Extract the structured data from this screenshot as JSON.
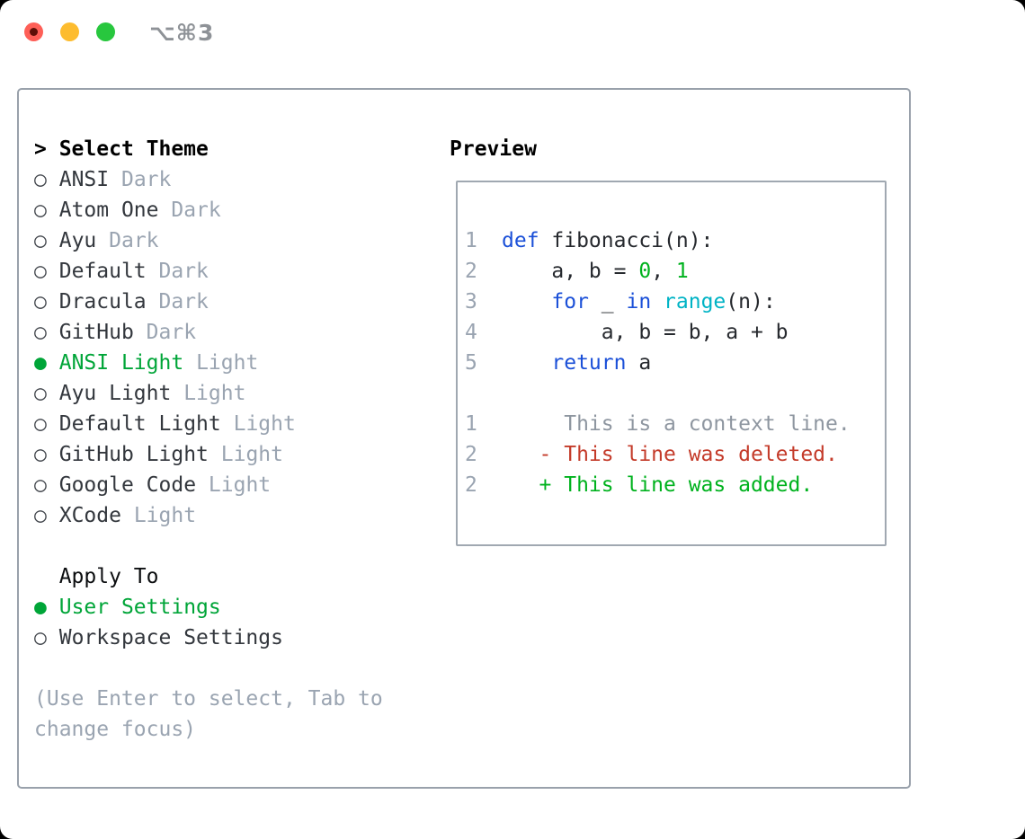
{
  "titlebar": {
    "shortcut_label": "⌥⌘3",
    "buttons": [
      "close",
      "minimize",
      "zoom"
    ]
  },
  "colors": {
    "ui-green": "#00a538",
    "keyword-blue": "#1b50d8",
    "builtin-cyan": "#00b3c5",
    "literal-green": "#00b21e",
    "deleted-red": "#c43b2a",
    "added-green": "#00b21e",
    "muted-gray": "#9aa4b1",
    "text-dark": "#33373d",
    "border-gray": "#99a1ab",
    "traffic-red": "#fe5f57",
    "traffic-yellow": "#fdbc2f",
    "traffic-green": "#28c73e"
  },
  "theme_panel": {
    "title_prompt": ">",
    "title": "Select Theme",
    "radio_unselected": "○",
    "radio_selected": "●",
    "items": [
      {
        "name": "ANSI",
        "tag": "Dark",
        "selected": false
      },
      {
        "name": "Atom One",
        "tag": "Dark",
        "selected": false
      },
      {
        "name": "Ayu",
        "tag": "Dark",
        "selected": false
      },
      {
        "name": "Default",
        "tag": "Dark",
        "selected": false
      },
      {
        "name": "Dracula",
        "tag": "Dark",
        "selected": false
      },
      {
        "name": "GitHub",
        "tag": "Dark",
        "selected": false
      },
      {
        "name": "ANSI Light",
        "tag": "Light",
        "selected": true
      },
      {
        "name": "Ayu Light",
        "tag": "Light",
        "selected": false
      },
      {
        "name": "Default Light",
        "tag": "Light",
        "selected": false
      },
      {
        "name": "GitHub Light",
        "tag": "Light",
        "selected": false
      },
      {
        "name": "Google Code",
        "tag": "Light",
        "selected": false
      },
      {
        "name": "XCode",
        "tag": "Light",
        "selected": false
      }
    ],
    "apply_to": {
      "title": "Apply To",
      "options": [
        {
          "name": "User Settings",
          "selected": true
        },
        {
          "name": "Workspace Settings",
          "selected": false
        }
      ]
    },
    "help_text": "(Use Enter to select, Tab to change focus)"
  },
  "preview_panel": {
    "title": "Preview",
    "code_lines": [
      {
        "num": "1",
        "kind": "code",
        "tokens": [
          {
            "t": "def",
            "c": "keyword"
          },
          {
            "t": " fibonacci(n):",
            "c": "plain"
          }
        ]
      },
      {
        "num": "2",
        "kind": "code",
        "tokens": [
          {
            "t": "    a, b = ",
            "c": "plain"
          },
          {
            "t": "0",
            "c": "number"
          },
          {
            "t": ", ",
            "c": "plain"
          },
          {
            "t": "1",
            "c": "number"
          }
        ]
      },
      {
        "num": "3",
        "kind": "code",
        "tokens": [
          {
            "t": "    ",
            "c": "plain"
          },
          {
            "t": "for",
            "c": "keyword"
          },
          {
            "t": " _ ",
            "c": "plain"
          },
          {
            "t": "in",
            "c": "keyword"
          },
          {
            "t": " ",
            "c": "plain"
          },
          {
            "t": "range",
            "c": "builtin"
          },
          {
            "t": "(n):",
            "c": "plain"
          }
        ]
      },
      {
        "num": "4",
        "kind": "code",
        "tokens": [
          {
            "t": "        a, b = b, a + b",
            "c": "plain"
          }
        ]
      },
      {
        "num": "5",
        "kind": "code",
        "tokens": [
          {
            "t": "    ",
            "c": "plain"
          },
          {
            "t": "return",
            "c": "keyword"
          },
          {
            "t": " a",
            "c": "plain"
          }
        ]
      },
      {
        "num": "",
        "kind": "blank",
        "tokens": []
      },
      {
        "num": "1",
        "kind": "context",
        "tokens": [
          {
            "t": "     This is a context line.",
            "c": "context"
          }
        ]
      },
      {
        "num": "2",
        "kind": "deleted",
        "tokens": [
          {
            "t": "   - This line was deleted.",
            "c": "deleted"
          }
        ]
      },
      {
        "num": "2",
        "kind": "added",
        "tokens": [
          {
            "t": "   + This line was added.",
            "c": "added"
          }
        ]
      }
    ]
  }
}
